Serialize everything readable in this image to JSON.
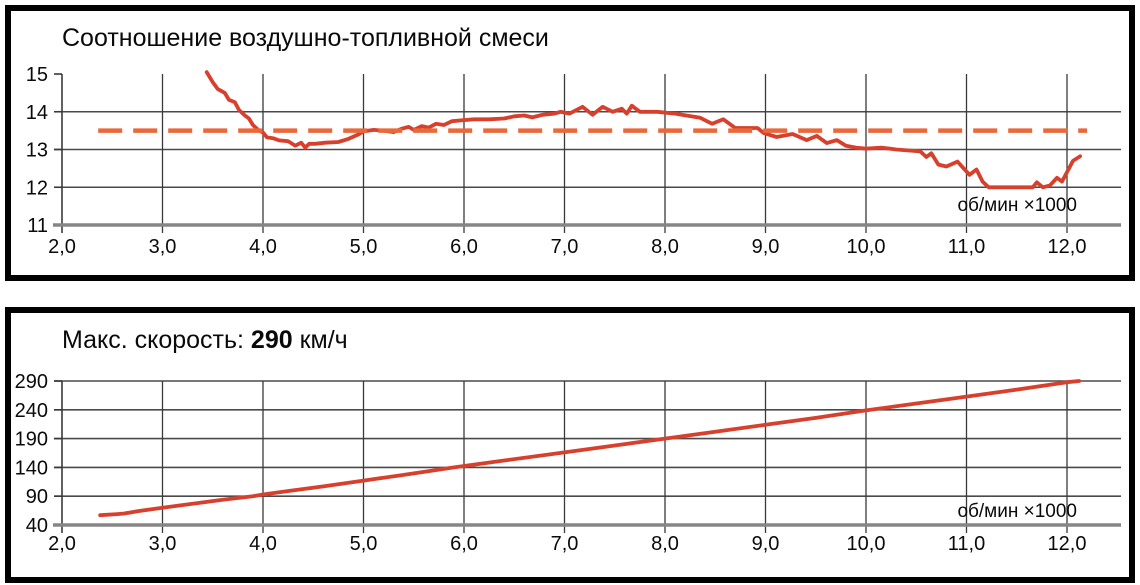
{
  "panels": [
    {
      "title": "Соотношение воздушно-топливной смеси",
      "unit_label": "об/мин ×1000"
    },
    {
      "title_prefix": "Макс. скорость: ",
      "title_value": "290",
      "title_suffix": " км/ч",
      "unit_label": "об/мин ×1000"
    }
  ],
  "colors": {
    "line_red": "#d7402c",
    "dashed_orange": "#e9693c",
    "grid_horizontal": "#4a4a4a",
    "grid_vertical": "#3a3a3a",
    "axis_baseline": "#868686",
    "text": "#0a0a0a",
    "panel_border": "#000000"
  },
  "chart_data": [
    {
      "type": "line",
      "title": "Соотношение воздушно-топливной смеси",
      "xlabel": "об/мин ×1000",
      "ylabel": "",
      "xlim": [
        2.0,
        12.55
      ],
      "ylim": [
        11,
        15
      ],
      "grid": true,
      "x_tick_values": [
        2,
        3,
        4,
        5,
        6,
        7,
        8,
        9,
        10,
        11,
        12
      ],
      "x_tick_labels": [
        "2,0",
        "3,0",
        "4,0",
        "5,0",
        "6,0",
        "7,0",
        "8,0",
        "9,0",
        "10,0",
        "11,0",
        "12,0"
      ],
      "y_tick_values": [
        11,
        12,
        13,
        14,
        15
      ],
      "y_tick_labels": [
        "11",
        "12",
        "13",
        "14",
        "15"
      ],
      "grid_x": [
        3,
        4,
        5,
        6,
        7,
        8,
        9,
        10,
        11,
        12
      ],
      "grid_y": [
        12,
        13,
        14
      ],
      "series": [
        {
          "name": "air_fuel_ratio",
          "style": "solid",
          "color": "#d7402c",
          "points": [
            [
              3.44,
              15.05
            ],
            [
              3.5,
              14.78
            ],
            [
              3.55,
              14.6
            ],
            [
              3.62,
              14.5
            ],
            [
              3.66,
              14.32
            ],
            [
              3.72,
              14.25
            ],
            [
              3.76,
              14.05
            ],
            [
              3.82,
              13.9
            ],
            [
              3.86,
              13.82
            ],
            [
              3.9,
              13.65
            ],
            [
              3.96,
              13.5
            ],
            [
              4.0,
              13.45
            ],
            [
              4.04,
              13.32
            ],
            [
              4.1,
              13.3
            ],
            [
              4.16,
              13.24
            ],
            [
              4.25,
              13.22
            ],
            [
              4.32,
              13.1
            ],
            [
              4.38,
              13.18
            ],
            [
              4.42,
              13.05
            ],
            [
              4.46,
              13.15
            ],
            [
              4.52,
              13.15
            ],
            [
              4.62,
              13.18
            ],
            [
              4.75,
              13.2
            ],
            [
              4.85,
              13.28
            ],
            [
              4.95,
              13.4
            ],
            [
              5.0,
              13.48
            ],
            [
              5.1,
              13.52
            ],
            [
              5.2,
              13.5
            ],
            [
              5.3,
              13.46
            ],
            [
              5.38,
              13.55
            ],
            [
              5.45,
              13.6
            ],
            [
              5.5,
              13.52
            ],
            [
              5.58,
              13.62
            ],
            [
              5.65,
              13.58
            ],
            [
              5.72,
              13.68
            ],
            [
              5.8,
              13.65
            ],
            [
              5.88,
              13.75
            ],
            [
              6.0,
              13.78
            ],
            [
              6.1,
              13.8
            ],
            [
              6.25,
              13.8
            ],
            [
              6.4,
              13.82
            ],
            [
              6.5,
              13.88
            ],
            [
              6.6,
              13.9
            ],
            [
              6.68,
              13.85
            ],
            [
              6.78,
              13.92
            ],
            [
              6.9,
              13.95
            ],
            [
              6.96,
              14.0
            ],
            [
              7.05,
              13.95
            ],
            [
              7.18,
              14.13
            ],
            [
              7.28,
              13.92
            ],
            [
              7.38,
              14.13
            ],
            [
              7.48,
              14.0
            ],
            [
              7.57,
              14.08
            ],
            [
              7.62,
              13.95
            ],
            [
              7.67,
              14.16
            ],
            [
              7.75,
              14.0
            ],
            [
              7.92,
              14.0
            ],
            [
              8.1,
              13.95
            ],
            [
              8.35,
              13.84
            ],
            [
              8.47,
              13.68
            ],
            [
              8.58,
              13.8
            ],
            [
              8.7,
              13.57
            ],
            [
              8.92,
              13.57
            ],
            [
              8.98,
              13.44
            ],
            [
              9.11,
              13.33
            ],
            [
              9.27,
              13.41
            ],
            [
              9.41,
              13.25
            ],
            [
              9.51,
              13.36
            ],
            [
              9.61,
              13.17
            ],
            [
              9.71,
              13.25
            ],
            [
              9.8,
              13.1
            ],
            [
              9.9,
              13.05
            ],
            [
              10.0,
              13.02
            ],
            [
              10.15,
              13.05
            ],
            [
              10.3,
              13.0
            ],
            [
              10.54,
              12.95
            ],
            [
              10.6,
              12.8
            ],
            [
              10.65,
              12.9
            ],
            [
              10.72,
              12.6
            ],
            [
              10.8,
              12.55
            ],
            [
              10.91,
              12.68
            ],
            [
              11.03,
              12.33
            ],
            [
              11.1,
              12.47
            ],
            [
              11.16,
              12.15
            ],
            [
              11.22,
              12.0
            ],
            [
              11.4,
              12.0
            ],
            [
              11.55,
              12.0
            ],
            [
              11.66,
              12.0
            ],
            [
              11.7,
              12.13
            ],
            [
              11.76,
              12.0
            ],
            [
              11.83,
              12.05
            ],
            [
              11.9,
              12.25
            ],
            [
              11.95,
              12.15
            ],
            [
              12.0,
              12.4
            ],
            [
              12.06,
              12.7
            ],
            [
              12.13,
              12.82
            ]
          ]
        },
        {
          "name": "target_ratio_13_5",
          "style": "dashed",
          "color": "#e9693c",
          "value": 13.5,
          "points": [
            [
              2.36,
              13.5
            ],
            [
              12.2,
              13.5
            ]
          ]
        }
      ]
    },
    {
      "type": "line",
      "title": "Макс. скорость: 290 км/ч",
      "max_speed_kmh": 290,
      "xlabel": "об/мин ×1000",
      "ylabel": "",
      "xlim": [
        2.0,
        12.55
      ],
      "ylim": [
        40,
        290
      ],
      "grid": true,
      "x_tick_values": [
        2,
        3,
        4,
        5,
        6,
        7,
        8,
        9,
        10,
        11,
        12
      ],
      "x_tick_labels": [
        "2,0",
        "3,0",
        "4,0",
        "5,0",
        "6,0",
        "7,0",
        "8,0",
        "9,0",
        "10,0",
        "11,0",
        "12,0"
      ],
      "y_tick_values": [
        40,
        90,
        140,
        190,
        240,
        290
      ],
      "y_tick_labels": [
        "40",
        "90",
        "140",
        "190",
        "240",
        "290"
      ],
      "grid_x": [
        3,
        4,
        5,
        6,
        7,
        8,
        9,
        10,
        11,
        12
      ],
      "grid_y": [
        90,
        140,
        190,
        240,
        290
      ],
      "series": [
        {
          "name": "speed_kmh",
          "style": "solid",
          "color": "#d7402c",
          "points": [
            [
              2.38,
              57
            ],
            [
              2.55,
              59
            ],
            [
              2.62,
              60
            ],
            [
              2.75,
              64
            ],
            [
              3.0,
              70
            ],
            [
              3.3,
              77
            ],
            [
              3.6,
              84
            ],
            [
              3.9,
              90
            ],
            [
              4.0,
              93
            ],
            [
              4.3,
              100
            ],
            [
              4.6,
              107
            ],
            [
              5.0,
              117
            ],
            [
              5.4,
              127
            ],
            [
              5.9,
              140
            ],
            [
              6.4,
              152
            ],
            [
              7.0,
              166
            ],
            [
              7.5,
              178
            ],
            [
              8.0,
              190
            ],
            [
              8.5,
              202
            ],
            [
              9.0,
              214
            ],
            [
              9.5,
              226
            ],
            [
              10.0,
              239
            ],
            [
              10.5,
              251
            ],
            [
              11.0,
              263
            ],
            [
              11.5,
              275
            ],
            [
              12.0,
              288
            ],
            [
              12.12,
              290
            ]
          ]
        }
      ]
    }
  ]
}
